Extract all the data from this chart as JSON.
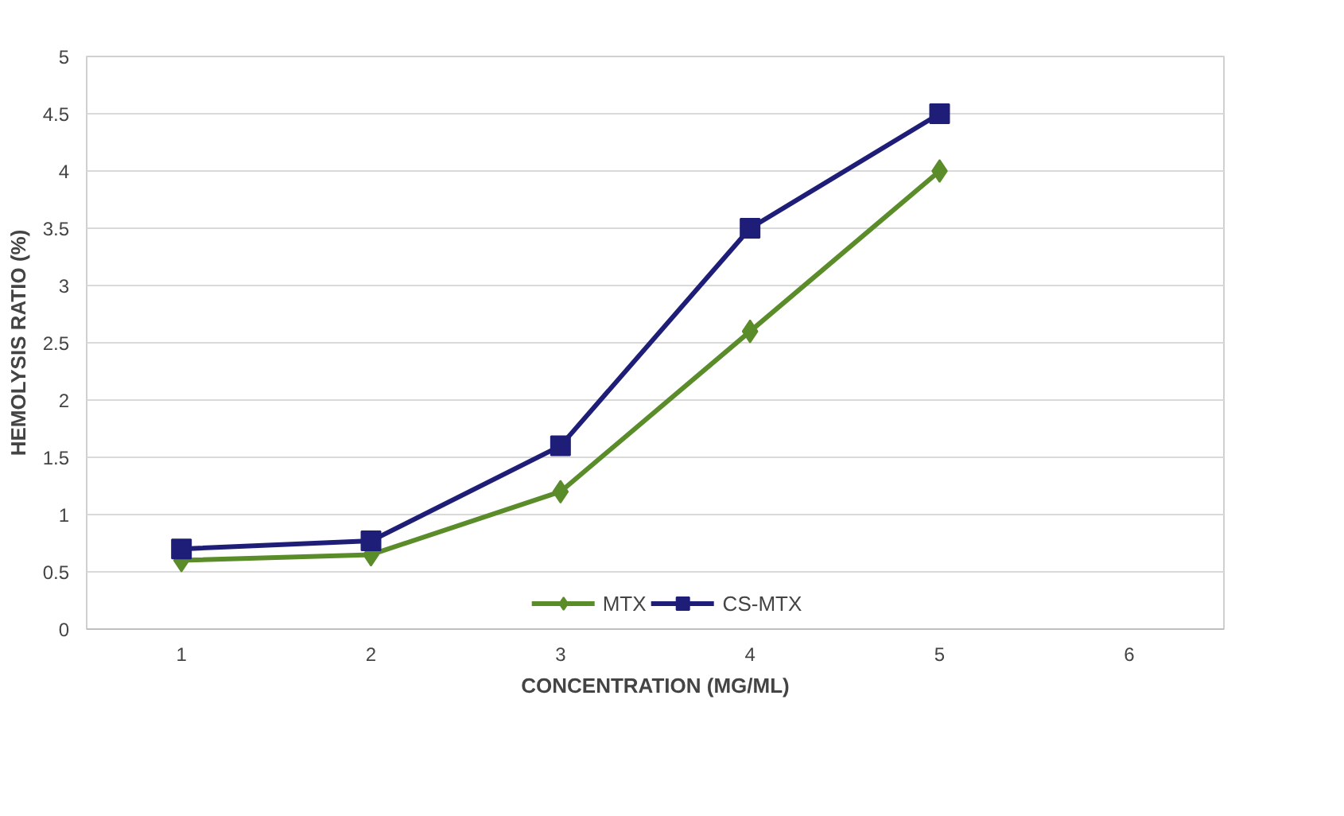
{
  "chart_data": {
    "type": "line",
    "xlabel": "CONCENTRATION (MG/ML)",
    "ylabel": "HEMOLYSIS RATIO (%)",
    "x": [
      1,
      2,
      3,
      4,
      5
    ],
    "xlim": [
      0.5,
      6.5
    ],
    "xticks": [
      1,
      2,
      3,
      4,
      5,
      6
    ],
    "ylim": [
      0,
      5
    ],
    "yticks": [
      0,
      0.5,
      1,
      1.5,
      2,
      2.5,
      3,
      3.5,
      4,
      4.5,
      5
    ],
    "grid": "y",
    "legend": "bottom",
    "line_style": "solid",
    "series": [
      {
        "name": "MTX",
        "color": "#5b8c2a",
        "marker": "diamond",
        "values": [
          0.6,
          0.65,
          1.2,
          2.6,
          4.0
        ]
      },
      {
        "name": "CS-MTX",
        "color": "#1e1e78",
        "marker": "square",
        "values": [
          0.7,
          0.77,
          1.6,
          3.5,
          4.5
        ]
      }
    ]
  }
}
